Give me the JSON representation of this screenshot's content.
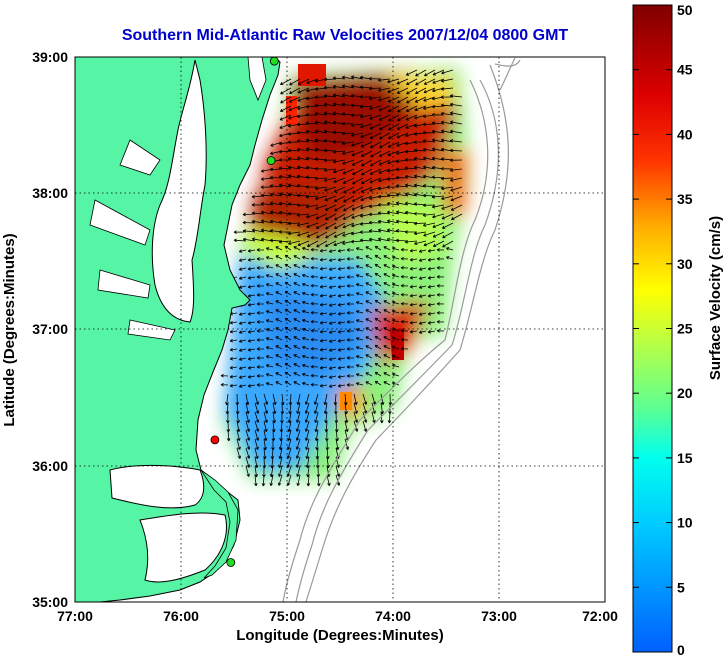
{
  "title": "Southern Mid-Atlantic Raw Velocities 2007/12/04 0800 GMT",
  "colors": {
    "title": "#0000cc",
    "land": "#55f5a5",
    "water": "#ffffff",
    "coast": "#000000",
    "bathy": "#9a9a9a",
    "station_green": "#22dd22",
    "station_red": "#ff0000"
  },
  "chart_data": {
    "type": "heatmap",
    "xlabel": "Longitude (Degrees:Minutes)",
    "ylabel": "Latitude (Degrees:Minutes)",
    "xlim": [
      -77,
      -72
    ],
    "ylim": [
      35,
      39
    ],
    "x_tick_labels": [
      "77:00",
      "76:00",
      "75:00",
      "74:00",
      "73:00",
      "72:00"
    ],
    "y_tick_labels": [
      "39:00",
      "38:00",
      "37:00",
      "36:00",
      "35:00"
    ],
    "grid": true,
    "colorbar": {
      "label": "Surface Velocity (cm/s)",
      "range": [
        0,
        50
      ],
      "tick_labels": [
        "50",
        "45",
        "40",
        "35",
        "30",
        "25",
        "20",
        "15",
        "10",
        "5",
        "0"
      ]
    },
    "stations": [
      {
        "lon": -75.12,
        "lat": 38.97,
        "status": "green"
      },
      {
        "lon": -75.15,
        "lat": 38.24,
        "status": "green"
      },
      {
        "lon": -75.68,
        "lat": 36.19,
        "status": "red"
      },
      {
        "lon": -75.53,
        "lat": 35.29,
        "status": "green"
      }
    ]
  }
}
